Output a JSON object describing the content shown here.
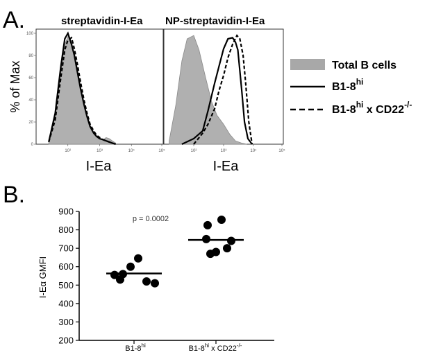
{
  "figure": {
    "panelA": {
      "letter": "A."
    },
    "panelB": {
      "letter": "B."
    }
  },
  "chart_data": [
    {
      "type": "area",
      "panel": "A",
      "title": "streptavidin-I-Ea",
      "xlabel": "I-Ea",
      "ylabel": "% of Max",
      "xscale": "log",
      "xlim": [
        10,
        100000
      ],
      "ylim": [
        0,
        100
      ],
      "x_tick_labels": [
        "10²",
        "10³",
        "10⁴",
        "10⁵"
      ],
      "y_tick_labels": [
        "0",
        "20",
        "40",
        "60",
        "80",
        "100"
      ],
      "series": [
        {
          "name": "Total B cells",
          "style": "filled-gray",
          "x": [
            25,
            40,
            60,
            80,
            100,
            130,
            160,
            200,
            250,
            320,
            400,
            500,
            650,
            800,
            1000,
            1300,
            1600,
            2000,
            2500,
            3200
          ],
          "y": [
            2,
            25,
            65,
            90,
            97,
            92,
            82,
            68,
            52,
            38,
            26,
            17,
            11,
            7,
            5,
            4,
            6,
            5,
            3,
            1
          ]
        },
        {
          "name": "B1-8hi",
          "style": "solid",
          "x": [
            25,
            40,
            60,
            80,
            100,
            130,
            160,
            200,
            250,
            320,
            400,
            500,
            650,
            800,
            1000,
            1300,
            1600,
            2000,
            2500,
            3200
          ],
          "y": [
            2,
            28,
            70,
            95,
            100,
            90,
            80,
            65,
            50,
            36,
            25,
            16,
            10,
            7,
            5,
            4,
            3,
            2,
            1,
            0
          ]
        },
        {
          "name": "B1-8hi x CD22-/-",
          "style": "dashed",
          "x": [
            25,
            40,
            60,
            80,
            100,
            130,
            160,
            200,
            250,
            320,
            400,
            500,
            650,
            800,
            1000,
            1300,
            1600,
            2000,
            2500,
            3200
          ],
          "y": [
            2,
            22,
            60,
            85,
            94,
            96,
            86,
            72,
            56,
            40,
            28,
            18,
            12,
            8,
            6,
            4,
            3,
            2,
            1,
            0
          ]
        }
      ]
    },
    {
      "type": "area",
      "panel": "A",
      "title": "NP-streptavidin-I-Ea",
      "xlabel": "I-Ea",
      "ylabel": "",
      "xscale": "log",
      "xlim": [
        10,
        100000
      ],
      "ylim": [
        0,
        100
      ],
      "x_tick_labels": [
        "10²",
        "10³",
        "10⁴",
        "10⁵"
      ],
      "series": [
        {
          "name": "Total B cells",
          "style": "filled-gray",
          "x": [
            15,
            25,
            40,
            60,
            100,
            150,
            250,
            400,
            600,
            1000,
            1600,
            2500,
            4000,
            6000
          ],
          "y": [
            3,
            35,
            75,
            95,
            98,
            85,
            60,
            38,
            26,
            18,
            9,
            3,
            1,
            0
          ]
        },
        {
          "name": "B1-8hi",
          "style": "solid",
          "x": [
            40,
            100,
            200,
            300,
            500,
            700,
            1000,
            1400,
            2000,
            2500,
            3000,
            4000,
            5000,
            6500,
            9000
          ],
          "y": [
            0,
            5,
            12,
            30,
            55,
            70,
            86,
            95,
            96,
            92,
            85,
            50,
            20,
            5,
            0
          ]
        },
        {
          "name": "B1-8hi x CD22-/-",
          "style": "dashed",
          "x": [
            100,
            200,
            300,
            500,
            700,
            1000,
            1400,
            2000,
            2800,
            3500,
            4500,
            5500,
            7000,
            9000
          ],
          "y": [
            0,
            10,
            18,
            32,
            48,
            62,
            78,
            90,
            98,
            95,
            80,
            55,
            20,
            0
          ]
        }
      ]
    },
    {
      "type": "scatter",
      "panel": "B",
      "title": "",
      "xlabel": "",
      "ylabel": "I-Eα GMFI",
      "ylim": [
        200,
        900
      ],
      "y_ticks": [
        200,
        300,
        400,
        500,
        600,
        700,
        800,
        900
      ],
      "categories": [
        "B1-8hi",
        "B1-8hi x CD22-/-"
      ],
      "annotation": "p = 0.0002",
      "series": [
        {
          "name": "B1-8hi",
          "values": [
            555,
            560,
            600,
            645,
            520,
            510,
            530
          ],
          "mean": 563
        },
        {
          "name": "B1-8hi x CD22-/-",
          "values": [
            825,
            855,
            750,
            680,
            700,
            670,
            740
          ],
          "mean": 745
        }
      ]
    }
  ],
  "legend": {
    "items": [
      {
        "style": "filled-gray",
        "label": "Total B cells"
      },
      {
        "style": "solid",
        "label_main": "B1-8",
        "label_sup": "hi",
        "label_tail": ""
      },
      {
        "style": "dashed",
        "label_main": "B1-8",
        "label_sup": "hi",
        "label_tail": " x CD22",
        "label_sup2": "-/-"
      }
    ]
  },
  "panelB_labels": {
    "cat1_main": "B1-8",
    "cat1_sup": "hi",
    "cat2_main": "B1-8",
    "cat2_sup": "hi",
    "cat2_tail": " x CD22",
    "cat2_sup2": "-/-"
  }
}
